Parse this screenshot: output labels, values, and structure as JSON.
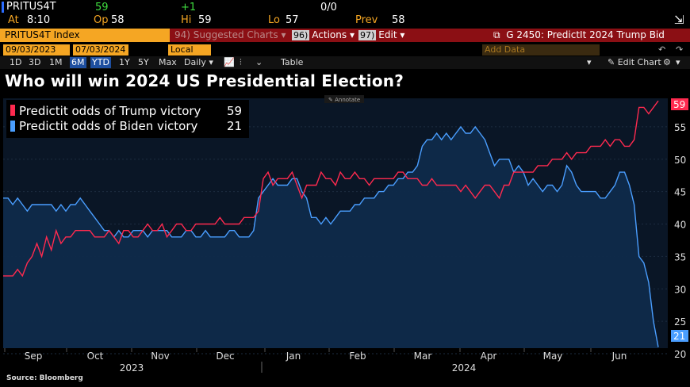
{
  "quote": {
    "ticker": "PRITUS4T",
    "last": "59",
    "change": "+1",
    "ratio": "0/0",
    "time_label": "At",
    "time": "8:10",
    "open_label": "Op",
    "open": "58",
    "high_label": "Hi",
    "high": "59",
    "low_label": "Lo",
    "low": "57",
    "prev_label": "Prev",
    "prev": "58"
  },
  "command_bar": {
    "security": "PRITUS4T Index",
    "suggested_num": "94)",
    "suggested": "Suggested Charts",
    "actions_num": "96)",
    "actions": "Actions",
    "edit_num": "97)",
    "edit": "Edit",
    "chart_id": "G 2450: PredictIt 2024 Trump Bid"
  },
  "date_bar": {
    "start": "09/03/2023",
    "end": "07/03/2024",
    "currency": "Local CCY",
    "add_data": "Add Data",
    "edit_chart": "Edit Chart"
  },
  "range_bar": {
    "ranges": [
      "1D",
      "3D",
      "1M",
      "6M",
      "YTD",
      "1Y",
      "5Y",
      "Max"
    ],
    "selected": [
      "6M",
      "YTD"
    ],
    "period": "Daily",
    "table": "Table"
  },
  "annotate": "Annotate",
  "source": "Source:  Bloomberg",
  "colors": {
    "trump": "#ff2a4f",
    "biden": "#4a9eff",
    "area": "#0f2a4a",
    "plot_bg": "#0a1626"
  },
  "chart_data": {
    "type": "line",
    "title": "Who will win 2024 US Presidential Election?",
    "xlabel": "",
    "ylabel": "",
    "ylim": [
      20,
      60
    ],
    "yticks": [
      20,
      25,
      30,
      35,
      40,
      45,
      50,
      55
    ],
    "x_month_labels": [
      "Sep",
      "Oct",
      "Nov",
      "Dec",
      "Jan",
      "Feb",
      "Mar",
      "Apr",
      "May",
      "Jun"
    ],
    "x_year_labels": [
      "2023",
      "2024"
    ],
    "legend_position": "top-left",
    "series": [
      {
        "name": "Predictit odds of Trump victory",
        "last_value": 59,
        "color": "#ff2a4f",
        "values": [
          32,
          32,
          32,
          33,
          32,
          34,
          35,
          37,
          35,
          38,
          36,
          39,
          37,
          38,
          38,
          39,
          39,
          39,
          39,
          38,
          38,
          38,
          39,
          38,
          37,
          39,
          39,
          38,
          38,
          39,
          40,
          39,
          39,
          40,
          38,
          39,
          40,
          40,
          39,
          39,
          40,
          40,
          40,
          40,
          40,
          41,
          40,
          40,
          40,
          40,
          41,
          41,
          41,
          42,
          47,
          48,
          46,
          47,
          47,
          47,
          48,
          46,
          44,
          46,
          46,
          46,
          48,
          47,
          47,
          46,
          48,
          47,
          47,
          48,
          47,
          47,
          46,
          47,
          47,
          47,
          47,
          47,
          48,
          48,
          47,
          47,
          47,
          46,
          46,
          47,
          46,
          46,
          46,
          46,
          46,
          45,
          46,
          45,
          44,
          45,
          46,
          46,
          45,
          44,
          46,
          46,
          48,
          48,
          48,
          48,
          48,
          49,
          49,
          49,
          50,
          50,
          50,
          51,
          50,
          51,
          51,
          51,
          52,
          52,
          52,
          53,
          52,
          53,
          53,
          52,
          52,
          53,
          58,
          58,
          57,
          58,
          59
        ]
      },
      {
        "name": "Predictit odds of Biden victory",
        "last_value": 21,
        "color": "#4a9eff",
        "values": [
          44,
          44,
          43,
          44,
          43,
          42,
          43,
          43,
          43,
          43,
          43,
          42,
          43,
          42,
          43,
          43,
          44,
          43,
          42,
          41,
          40,
          39,
          39,
          38,
          39,
          38,
          38,
          39,
          39,
          39,
          38,
          39,
          39,
          39,
          39,
          38,
          38,
          38,
          39,
          39,
          38,
          38,
          39,
          38,
          38,
          38,
          38,
          39,
          39,
          38,
          38,
          38,
          39,
          44,
          45,
          46,
          47,
          46,
          46,
          46,
          47,
          47,
          45,
          44,
          41,
          41,
          40,
          41,
          40,
          41,
          42,
          42,
          42,
          43,
          43,
          44,
          44,
          44,
          45,
          45,
          46,
          46,
          47,
          47,
          48,
          48,
          49,
          52,
          53,
          53,
          54,
          53,
          54,
          53,
          54,
          55,
          54,
          54,
          55,
          54,
          53,
          51,
          49,
          50,
          50,
          50,
          48,
          49,
          48,
          46,
          47,
          46,
          45,
          46,
          46,
          45,
          46,
          49,
          48,
          46,
          45,
          45,
          45,
          45,
          44,
          44,
          45,
          46,
          48,
          48,
          46,
          43,
          35,
          34,
          31,
          25,
          21
        ]
      }
    ]
  }
}
